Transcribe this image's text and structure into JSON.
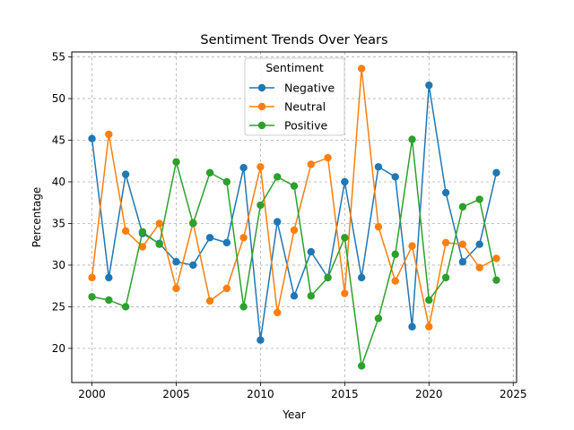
{
  "chart_data": {
    "type": "line",
    "title": "Sentiment Trends Over Years",
    "xlabel": "Year",
    "ylabel": "Percentage",
    "x": [
      2000,
      2001,
      2002,
      2003,
      2004,
      2005,
      2006,
      2007,
      2008,
      2009,
      2010,
      2011,
      2012,
      2013,
      2014,
      2015,
      2016,
      2017,
      2018,
      2019,
      2020,
      2021,
      2022,
      2023,
      2024
    ],
    "xlim": [
      1998.8,
      2025.2
    ],
    "ylim": [
      15.9,
      55.6
    ],
    "xticks": [
      2000,
      2005,
      2010,
      2015,
      2020,
      2025
    ],
    "yticks": [
      20,
      25,
      30,
      35,
      40,
      45,
      50,
      55
    ],
    "grid": true,
    "grid_style": "dashed",
    "legend": {
      "title": "Sentiment",
      "placement": "top-center"
    },
    "series": [
      {
        "name": "Negative",
        "color": "#1f77b4",
        "marker": "circle",
        "values": [
          45.2,
          28.5,
          40.9,
          33.8,
          32.6,
          30.4,
          30.0,
          33.3,
          32.7,
          41.7,
          21.0,
          35.2,
          26.3,
          31.6,
          28.5,
          40.0,
          28.5,
          41.8,
          40.6,
          22.6,
          51.6,
          38.7,
          30.4,
          32.5,
          41.1
        ]
      },
      {
        "name": "Neutral",
        "color": "#ff7f0e",
        "marker": "circle",
        "values": [
          28.5,
          45.7,
          34.1,
          32.2,
          35.0,
          27.2,
          35.1,
          25.7,
          27.2,
          33.3,
          41.8,
          24.3,
          34.2,
          42.1,
          42.9,
          26.6,
          53.6,
          34.6,
          28.1,
          32.3,
          22.6,
          32.7,
          32.5,
          29.7,
          30.8
        ]
      },
      {
        "name": "Positive",
        "color": "#2ca02c",
        "marker": "circle",
        "values": [
          26.2,
          25.8,
          25.0,
          34.0,
          32.5,
          42.4,
          35.0,
          41.1,
          40.0,
          25.0,
          37.2,
          40.6,
          39.5,
          26.3,
          28.5,
          33.3,
          17.9,
          23.6,
          31.3,
          45.1,
          25.8,
          28.5,
          37.0,
          37.9,
          28.2
        ]
      }
    ]
  }
}
